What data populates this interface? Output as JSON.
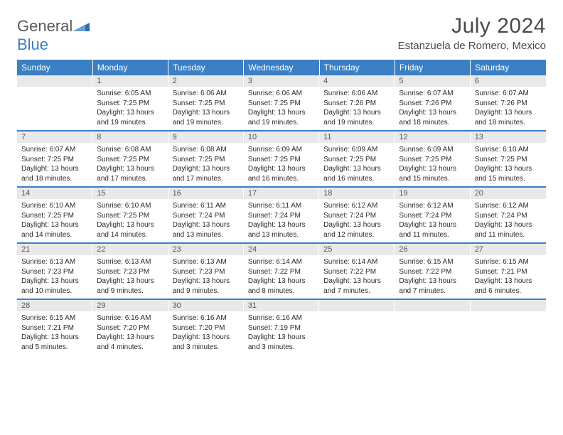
{
  "logo": {
    "text1": "General",
    "text2": "Blue"
  },
  "title": "July 2024",
  "location": "Estanzuela de Romero, Mexico",
  "colors": {
    "header_bg": "#3b7fc4",
    "header_text": "#ffffff",
    "daynum_bg": "#e9e9e9",
    "text": "#2a2a2a",
    "logo_gray": "#5a5a5a",
    "logo_blue": "#3b7fc4"
  },
  "day_names": [
    "Sunday",
    "Monday",
    "Tuesday",
    "Wednesday",
    "Thursday",
    "Friday",
    "Saturday"
  ],
  "weeks": [
    [
      null,
      {
        "n": "1",
        "sr": "Sunrise: 6:05 AM",
        "ss": "Sunset: 7:25 PM",
        "d1": "Daylight: 13 hours",
        "d2": "and 19 minutes."
      },
      {
        "n": "2",
        "sr": "Sunrise: 6:06 AM",
        "ss": "Sunset: 7:25 PM",
        "d1": "Daylight: 13 hours",
        "d2": "and 19 minutes."
      },
      {
        "n": "3",
        "sr": "Sunrise: 6:06 AM",
        "ss": "Sunset: 7:25 PM",
        "d1": "Daylight: 13 hours",
        "d2": "and 19 minutes."
      },
      {
        "n": "4",
        "sr": "Sunrise: 6:06 AM",
        "ss": "Sunset: 7:26 PM",
        "d1": "Daylight: 13 hours",
        "d2": "and 19 minutes."
      },
      {
        "n": "5",
        "sr": "Sunrise: 6:07 AM",
        "ss": "Sunset: 7:26 PM",
        "d1": "Daylight: 13 hours",
        "d2": "and 18 minutes."
      },
      {
        "n": "6",
        "sr": "Sunrise: 6:07 AM",
        "ss": "Sunset: 7:26 PM",
        "d1": "Daylight: 13 hours",
        "d2": "and 18 minutes."
      }
    ],
    [
      {
        "n": "7",
        "sr": "Sunrise: 6:07 AM",
        "ss": "Sunset: 7:25 PM",
        "d1": "Daylight: 13 hours",
        "d2": "and 18 minutes."
      },
      {
        "n": "8",
        "sr": "Sunrise: 6:08 AM",
        "ss": "Sunset: 7:25 PM",
        "d1": "Daylight: 13 hours",
        "d2": "and 17 minutes."
      },
      {
        "n": "9",
        "sr": "Sunrise: 6:08 AM",
        "ss": "Sunset: 7:25 PM",
        "d1": "Daylight: 13 hours",
        "d2": "and 17 minutes."
      },
      {
        "n": "10",
        "sr": "Sunrise: 6:09 AM",
        "ss": "Sunset: 7:25 PM",
        "d1": "Daylight: 13 hours",
        "d2": "and 16 minutes."
      },
      {
        "n": "11",
        "sr": "Sunrise: 6:09 AM",
        "ss": "Sunset: 7:25 PM",
        "d1": "Daylight: 13 hours",
        "d2": "and 16 minutes."
      },
      {
        "n": "12",
        "sr": "Sunrise: 6:09 AM",
        "ss": "Sunset: 7:25 PM",
        "d1": "Daylight: 13 hours",
        "d2": "and 15 minutes."
      },
      {
        "n": "13",
        "sr": "Sunrise: 6:10 AM",
        "ss": "Sunset: 7:25 PM",
        "d1": "Daylight: 13 hours",
        "d2": "and 15 minutes."
      }
    ],
    [
      {
        "n": "14",
        "sr": "Sunrise: 6:10 AM",
        "ss": "Sunset: 7:25 PM",
        "d1": "Daylight: 13 hours",
        "d2": "and 14 minutes."
      },
      {
        "n": "15",
        "sr": "Sunrise: 6:10 AM",
        "ss": "Sunset: 7:25 PM",
        "d1": "Daylight: 13 hours",
        "d2": "and 14 minutes."
      },
      {
        "n": "16",
        "sr": "Sunrise: 6:11 AM",
        "ss": "Sunset: 7:24 PM",
        "d1": "Daylight: 13 hours",
        "d2": "and 13 minutes."
      },
      {
        "n": "17",
        "sr": "Sunrise: 6:11 AM",
        "ss": "Sunset: 7:24 PM",
        "d1": "Daylight: 13 hours",
        "d2": "and 13 minutes."
      },
      {
        "n": "18",
        "sr": "Sunrise: 6:12 AM",
        "ss": "Sunset: 7:24 PM",
        "d1": "Daylight: 13 hours",
        "d2": "and 12 minutes."
      },
      {
        "n": "19",
        "sr": "Sunrise: 6:12 AM",
        "ss": "Sunset: 7:24 PM",
        "d1": "Daylight: 13 hours",
        "d2": "and 11 minutes."
      },
      {
        "n": "20",
        "sr": "Sunrise: 6:12 AM",
        "ss": "Sunset: 7:24 PM",
        "d1": "Daylight: 13 hours",
        "d2": "and 11 minutes."
      }
    ],
    [
      {
        "n": "21",
        "sr": "Sunrise: 6:13 AM",
        "ss": "Sunset: 7:23 PM",
        "d1": "Daylight: 13 hours",
        "d2": "and 10 minutes."
      },
      {
        "n": "22",
        "sr": "Sunrise: 6:13 AM",
        "ss": "Sunset: 7:23 PM",
        "d1": "Daylight: 13 hours",
        "d2": "and 9 minutes."
      },
      {
        "n": "23",
        "sr": "Sunrise: 6:13 AM",
        "ss": "Sunset: 7:23 PM",
        "d1": "Daylight: 13 hours",
        "d2": "and 9 minutes."
      },
      {
        "n": "24",
        "sr": "Sunrise: 6:14 AM",
        "ss": "Sunset: 7:22 PM",
        "d1": "Daylight: 13 hours",
        "d2": "and 8 minutes."
      },
      {
        "n": "25",
        "sr": "Sunrise: 6:14 AM",
        "ss": "Sunset: 7:22 PM",
        "d1": "Daylight: 13 hours",
        "d2": "and 7 minutes."
      },
      {
        "n": "26",
        "sr": "Sunrise: 6:15 AM",
        "ss": "Sunset: 7:22 PM",
        "d1": "Daylight: 13 hours",
        "d2": "and 7 minutes."
      },
      {
        "n": "27",
        "sr": "Sunrise: 6:15 AM",
        "ss": "Sunset: 7:21 PM",
        "d1": "Daylight: 13 hours",
        "d2": "and 6 minutes."
      }
    ],
    [
      {
        "n": "28",
        "sr": "Sunrise: 6:15 AM",
        "ss": "Sunset: 7:21 PM",
        "d1": "Daylight: 13 hours",
        "d2": "and 5 minutes."
      },
      {
        "n": "29",
        "sr": "Sunrise: 6:16 AM",
        "ss": "Sunset: 7:20 PM",
        "d1": "Daylight: 13 hours",
        "d2": "and 4 minutes."
      },
      {
        "n": "30",
        "sr": "Sunrise: 6:16 AM",
        "ss": "Sunset: 7:20 PM",
        "d1": "Daylight: 13 hours",
        "d2": "and 3 minutes."
      },
      {
        "n": "31",
        "sr": "Sunrise: 6:16 AM",
        "ss": "Sunset: 7:19 PM",
        "d1": "Daylight: 13 hours",
        "d2": "and 3 minutes."
      },
      null,
      null,
      null
    ]
  ]
}
